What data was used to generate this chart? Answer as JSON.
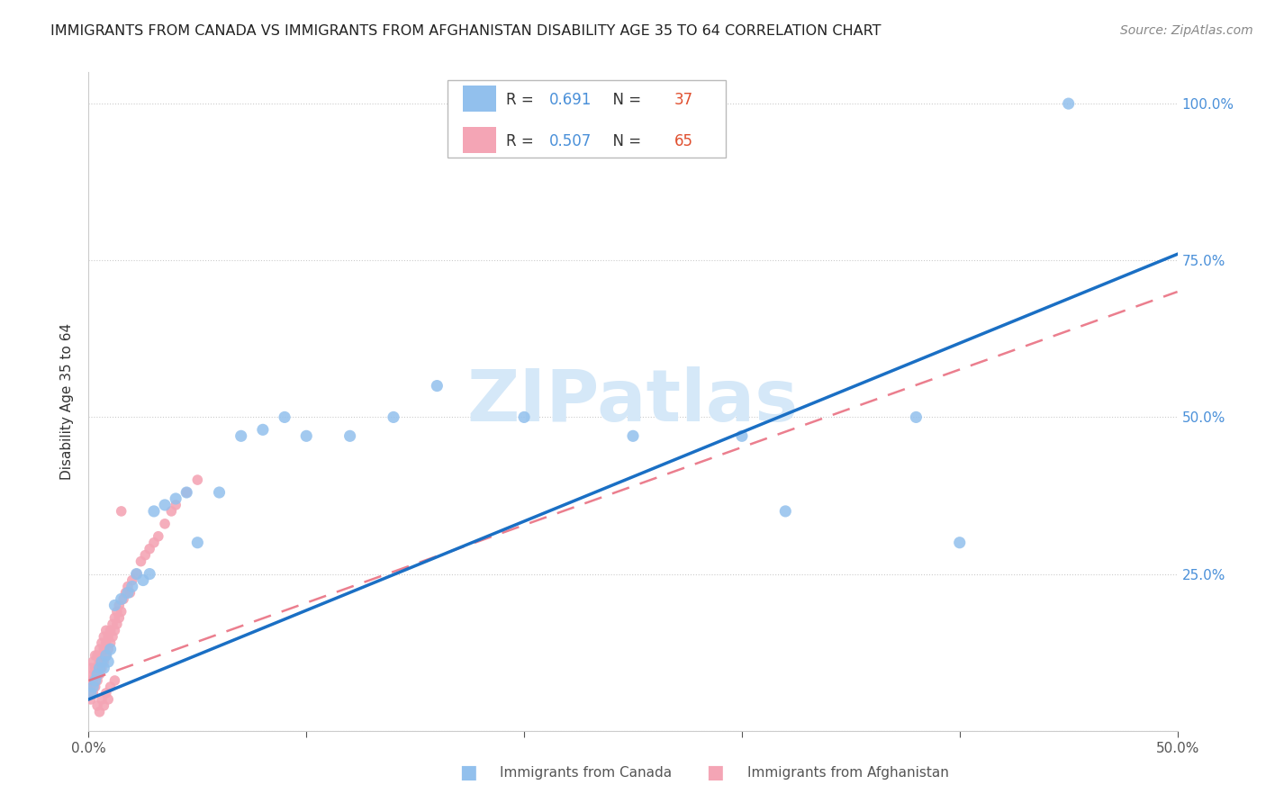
{
  "title": "IMMIGRANTS FROM CANADA VS IMMIGRANTS FROM AFGHANISTAN DISABILITY AGE 35 TO 64 CORRELATION CHART",
  "source": "Source: ZipAtlas.com",
  "ylabel": "Disability Age 35 to 64",
  "xlim": [
    0.0,
    0.5
  ],
  "ylim": [
    0.0,
    1.05
  ],
  "xticks": [
    0.0,
    0.1,
    0.2,
    0.3,
    0.4,
    0.5
  ],
  "xtick_labels": [
    "0.0%",
    "",
    "",
    "",
    "",
    "50.0%"
  ],
  "yticks": [
    0.0,
    0.25,
    0.5,
    0.75,
    1.0
  ],
  "ytick_labels": [
    "",
    "25.0%",
    "50.0%",
    "75.0%",
    "100.0%"
  ],
  "canada_color": "#92C0ED",
  "afghanistan_color": "#F4A5B5",
  "canada_line_color": "#1A6FC4",
  "afghanistan_line_color": "#E8687A",
  "canada_R": 0.691,
  "canada_N": 37,
  "afghanistan_R": 0.507,
  "afghanistan_N": 65,
  "watermark": "ZIPatlas",
  "watermark_color": "#D5E8F8",
  "background_color": "#ffffff",
  "canada_x": [
    0.001,
    0.002,
    0.003,
    0.004,
    0.005,
    0.006,
    0.007,
    0.008,
    0.009,
    0.01,
    0.012,
    0.015,
    0.018,
    0.02,
    0.022,
    0.025,
    0.028,
    0.03,
    0.035,
    0.04,
    0.045,
    0.05,
    0.06,
    0.07,
    0.08,
    0.09,
    0.1,
    0.12,
    0.14,
    0.16,
    0.2,
    0.25,
    0.3,
    0.32,
    0.38,
    0.4,
    0.45
  ],
  "canada_y": [
    0.06,
    0.07,
    0.08,
    0.09,
    0.1,
    0.11,
    0.1,
    0.12,
    0.11,
    0.13,
    0.2,
    0.21,
    0.22,
    0.23,
    0.25,
    0.24,
    0.25,
    0.35,
    0.36,
    0.37,
    0.38,
    0.3,
    0.38,
    0.47,
    0.48,
    0.5,
    0.47,
    0.47,
    0.5,
    0.55,
    0.5,
    0.47,
    0.47,
    0.35,
    0.5,
    0.3,
    1.0
  ],
  "afghanistan_x": [
    0.001,
    0.001,
    0.001,
    0.001,
    0.002,
    0.002,
    0.002,
    0.002,
    0.003,
    0.003,
    0.003,
    0.003,
    0.004,
    0.004,
    0.004,
    0.005,
    0.005,
    0.005,
    0.006,
    0.006,
    0.006,
    0.007,
    0.007,
    0.007,
    0.008,
    0.008,
    0.008,
    0.009,
    0.009,
    0.01,
    0.01,
    0.011,
    0.011,
    0.012,
    0.012,
    0.013,
    0.013,
    0.014,
    0.014,
    0.015,
    0.016,
    0.017,
    0.018,
    0.019,
    0.02,
    0.022,
    0.024,
    0.026,
    0.028,
    0.03,
    0.032,
    0.035,
    0.038,
    0.04,
    0.045,
    0.05,
    0.004,
    0.005,
    0.006,
    0.007,
    0.008,
    0.009,
    0.01,
    0.012,
    0.015
  ],
  "afghanistan_y": [
    0.05,
    0.07,
    0.08,
    0.1,
    0.06,
    0.08,
    0.09,
    0.11,
    0.07,
    0.09,
    0.1,
    0.12,
    0.08,
    0.1,
    0.12,
    0.09,
    0.11,
    0.13,
    0.1,
    0.12,
    0.14,
    0.11,
    0.13,
    0.15,
    0.12,
    0.14,
    0.16,
    0.13,
    0.15,
    0.14,
    0.16,
    0.15,
    0.17,
    0.16,
    0.18,
    0.17,
    0.19,
    0.18,
    0.2,
    0.19,
    0.21,
    0.22,
    0.23,
    0.22,
    0.24,
    0.25,
    0.27,
    0.28,
    0.29,
    0.3,
    0.31,
    0.33,
    0.35,
    0.36,
    0.38,
    0.4,
    0.04,
    0.03,
    0.05,
    0.04,
    0.06,
    0.05,
    0.07,
    0.08,
    0.35
  ],
  "canada_line_x0": 0.0,
  "canada_line_y0": 0.05,
  "canada_line_x1": 0.5,
  "canada_line_y1": 0.76,
  "afghanistan_line_x0": 0.0,
  "afghanistan_line_y0": 0.08,
  "afghanistan_line_x1": 0.5,
  "afghanistan_line_y1": 0.7
}
